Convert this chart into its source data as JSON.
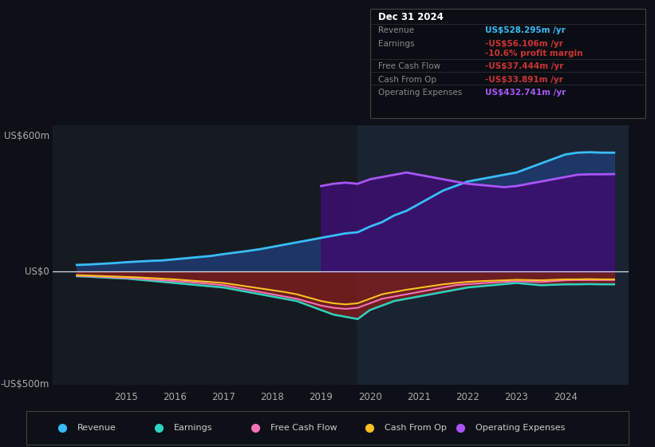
{
  "bg_color": "#0d1117",
  "plot_bg_color": "#161b22",
  "tooltip": {
    "date": "Dec 31 2024",
    "revenue": "US$528.295m /yr",
    "earnings": "-US$56.106m /yr",
    "profit_margin": "-10.6% profit margin",
    "free_cash_flow": "-US$37.444m /yr",
    "cash_from_op": "-US$33.891m /yr",
    "operating_expenses": "US$432.741m /yr"
  },
  "ylabel_top": "US$600m",
  "ylabel_zero": "US$0",
  "ylabel_bottom": "-US$500m",
  "ylim": [
    -500,
    650
  ],
  "xlim": [
    2013.5,
    2025.3
  ],
  "colors": {
    "revenue": "#38bdf8",
    "earnings": "#2dd4bf",
    "free_cash_flow": "#f472b6",
    "cash_from_op": "#fbbf24",
    "operating_expenses": "#a855f7",
    "revenue_fill": "#1e3a6e",
    "earnings_fill_neg": "#7f1d1d",
    "opex_fill": "#3b0f6e"
  },
  "x": [
    2014.0,
    2014.25,
    2014.5,
    2014.75,
    2015.0,
    2015.25,
    2015.5,
    2015.75,
    2016.0,
    2016.25,
    2016.5,
    2016.75,
    2017.0,
    2017.25,
    2017.5,
    2017.75,
    2018.0,
    2018.25,
    2018.5,
    2018.75,
    2019.0,
    2019.25,
    2019.5,
    2019.75,
    2020.0,
    2020.25,
    2020.5,
    2020.75,
    2021.0,
    2021.25,
    2021.5,
    2021.75,
    2022.0,
    2022.25,
    2022.5,
    2022.75,
    2023.0,
    2023.25,
    2023.5,
    2023.75,
    2024.0,
    2024.25,
    2024.5,
    2024.75,
    2025.0
  ],
  "revenue": [
    30,
    32,
    35,
    38,
    42,
    45,
    48,
    50,
    55,
    60,
    65,
    70,
    78,
    85,
    92,
    100,
    110,
    120,
    130,
    140,
    150,
    160,
    170,
    175,
    200,
    220,
    250,
    270,
    300,
    330,
    360,
    380,
    400,
    410,
    420,
    430,
    440,
    460,
    480,
    500,
    520,
    528,
    530,
    528,
    528
  ],
  "earnings": [
    -20,
    -22,
    -25,
    -28,
    -30,
    -35,
    -40,
    -45,
    -50,
    -55,
    -60,
    -65,
    -70,
    -80,
    -90,
    -100,
    -110,
    -120,
    -130,
    -150,
    -170,
    -190,
    -200,
    -210,
    -170,
    -150,
    -130,
    -120,
    -110,
    -100,
    -90,
    -80,
    -70,
    -65,
    -60,
    -55,
    -50,
    -55,
    -60,
    -58,
    -56,
    -56,
    -55,
    -56,
    -56
  ],
  "free_cash_flow": [
    -18,
    -20,
    -22,
    -25,
    -28,
    -30,
    -35,
    -38,
    -42,
    -45,
    -50,
    -55,
    -60,
    -70,
    -80,
    -90,
    -100,
    -110,
    -120,
    -135,
    -150,
    -160,
    -165,
    -160,
    -140,
    -120,
    -110,
    -100,
    -90,
    -80,
    -70,
    -60,
    -55,
    -52,
    -48,
    -45,
    -42,
    -44,
    -46,
    -42,
    -38,
    -37,
    -37,
    -37,
    -37
  ],
  "cash_from_op": [
    -15,
    -17,
    -19,
    -21,
    -23,
    -25,
    -28,
    -31,
    -34,
    -38,
    -42,
    -46,
    -50,
    -58,
    -66,
    -74,
    -82,
    -90,
    -100,
    -115,
    -130,
    -140,
    -145,
    -140,
    -120,
    -100,
    -90,
    -80,
    -72,
    -64,
    -56,
    -50,
    -45,
    -42,
    -40,
    -38,
    -36,
    -37,
    -38,
    -36,
    -34,
    -34,
    -33,
    -34,
    -34
  ],
  "operating_expenses": [
    0,
    0,
    0,
    0,
    0,
    0,
    0,
    0,
    0,
    0,
    0,
    0,
    0,
    0,
    0,
    0,
    0,
    0,
    0,
    0,
    380,
    390,
    395,
    390,
    410,
    420,
    430,
    440,
    430,
    420,
    410,
    400,
    390,
    385,
    380,
    375,
    380,
    390,
    400,
    410,
    420,
    430,
    432,
    432,
    433
  ],
  "highlight_x_start": 2019.75,
  "highlight_x_end": 2025.3,
  "legend_items": [
    {
      "label": "Revenue",
      "color": "#38bdf8"
    },
    {
      "label": "Earnings",
      "color": "#2dd4bf"
    },
    {
      "label": "Free Cash Flow",
      "color": "#f472b6"
    },
    {
      "label": "Cash From Op",
      "color": "#fbbf24"
    },
    {
      "label": "Operating Expenses",
      "color": "#a855f7"
    }
  ],
  "tooltip_rows": [
    {
      "label": "Revenue",
      "value": "US$528.295m /yr",
      "label_color": "#888888",
      "value_color": "#38bdf8"
    },
    {
      "label": "Earnings",
      "value": "-US$56.106m /yr",
      "label_color": "#888888",
      "value_color": "#cc3333"
    },
    {
      "label": "",
      "value": "-10.6% profit margin",
      "label_color": "#888888",
      "value_color": "#cc3333"
    },
    {
      "label": "Free Cash Flow",
      "value": "-US$37.444m /yr",
      "label_color": "#888888",
      "value_color": "#cc3333"
    },
    {
      "label": "Cash From Op",
      "value": "-US$33.891m /yr",
      "label_color": "#888888",
      "value_color": "#cc3333"
    },
    {
      "label": "Operating Expenses",
      "value": "US$432.741m /yr",
      "label_color": "#888888",
      "value_color": "#a855f7"
    }
  ]
}
